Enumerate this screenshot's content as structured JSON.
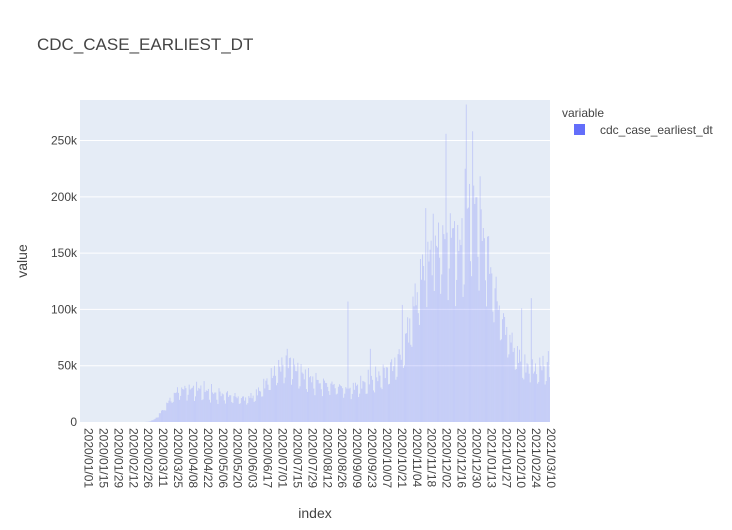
{
  "chart_data": {
    "type": "bar",
    "title": "CDC_CASE_EARLIEST_DT",
    "xlabel": "index",
    "ylabel": "value",
    "ylim": [
      0,
      286000
    ],
    "grid": true,
    "legend_position": "top-right",
    "legend_title": "variable",
    "series": [
      {
        "name": "cdc_case_earliest_dt",
        "color": "#636efa",
        "x_start": "2020/01/01",
        "x_end": "2021/03/16",
        "anchors": [
          [
            "2020/01/01",
            0
          ],
          [
            "2020/03/01",
            0
          ],
          [
            "2020/03/05",
            300
          ],
          [
            "2020/03/10",
            2000
          ],
          [
            "2020/03/15",
            7000
          ],
          [
            "2020/03/20",
            13000
          ],
          [
            "2020/03/25",
            20000
          ],
          [
            "2020/04/01",
            28000
          ],
          [
            "2020/04/08",
            30000
          ],
          [
            "2020/04/22",
            30000
          ],
          [
            "2020/05/06",
            26000
          ],
          [
            "2020/05/20",
            24000
          ],
          [
            "2020/06/03",
            21000
          ],
          [
            "2020/06/10",
            23000
          ],
          [
            "2020/06/17",
            28000
          ],
          [
            "2020/06/24",
            36000
          ],
          [
            "2020/07/01",
            44000
          ],
          [
            "2020/07/08",
            51000
          ],
          [
            "2020/07/15",
            54000
          ],
          [
            "2020/07/22",
            47000
          ],
          [
            "2020/07/29",
            42000
          ],
          [
            "2020/08/12",
            36000
          ],
          [
            "2020/08/26",
            33000
          ],
          [
            "2020/09/09",
            30000
          ],
          [
            "2020/09/23",
            35000
          ],
          [
            "2020/10/07",
            41000
          ],
          [
            "2020/10/21",
            51000
          ],
          [
            "2020/10/28",
            62000
          ],
          [
            "2020/11/04",
            82000
          ],
          [
            "2020/11/11",
            115000
          ],
          [
            "2020/11/18",
            140000
          ],
          [
            "2020/11/25",
            150000
          ],
          [
            "2020/12/02",
            160000
          ],
          [
            "2020/12/09",
            170000
          ],
          [
            "2020/12/16",
            168000
          ],
          [
            "2020/12/23",
            160000
          ],
          [
            "2020/12/30",
            195000
          ],
          [
            "2021/01/03",
            205000
          ],
          [
            "2021/01/06",
            200000
          ],
          [
            "2021/01/13",
            170000
          ],
          [
            "2021/01/20",
            138000
          ],
          [
            "2021/01/27",
            105000
          ],
          [
            "2021/02/03",
            85000
          ],
          [
            "2021/02/10",
            68000
          ],
          [
            "2021/02/17",
            55000
          ],
          [
            "2021/02/24",
            48000
          ],
          [
            "2021/03/03",
            46000
          ],
          [
            "2021/03/10",
            52000
          ],
          [
            "2021/03/16",
            45000
          ]
        ],
        "spikes": [
          [
            "2020/07/13",
            65000
          ],
          [
            "2020/09/08",
            107000
          ],
          [
            "2020/09/29",
            65000
          ],
          [
            "2020/10/29",
            104000
          ],
          [
            "2020/11/03",
            93000
          ],
          [
            "2020/11/20",
            190000
          ],
          [
            "2020/11/27",
            185000
          ],
          [
            "2020/12/09",
            256000
          ],
          [
            "2020/12/15",
            172000
          ],
          [
            "2020/12/20",
            175000
          ],
          [
            "2020/12/28",
            282000
          ],
          [
            "2021/01/04",
            210000
          ],
          [
            "2021/02/18",
            101000
          ],
          [
            "2021/02/27",
            110000
          ],
          [
            "2021/03/15",
            63000
          ]
        ]
      }
    ],
    "x_ticks": [
      "2020/01/01",
      "2020/01/15",
      "2020/01/29",
      "2020/02/12",
      "2020/02/26",
      "2020/03/11",
      "2020/03/25",
      "2020/04/08",
      "2020/04/22",
      "2020/05/06",
      "2020/05/20",
      "2020/06/03",
      "2020/06/17",
      "2020/07/01",
      "2020/07/15",
      "2020/07/29",
      "2020/08/12",
      "2020/08/26",
      "2020/09/09",
      "2020/09/23",
      "2020/10/07",
      "2020/10/21",
      "2020/11/04",
      "2020/11/18",
      "2020/12/02",
      "2020/12/16",
      "2020/12/30",
      "2021/01/13",
      "2021/01/27",
      "2021/02/10",
      "2021/02/24",
      "2021/03/10"
    ],
    "y_ticks": [
      {
        "value": 0,
        "label": "0"
      },
      {
        "value": 50000,
        "label": "50k"
      },
      {
        "value": 100000,
        "label": "100k"
      },
      {
        "value": 150000,
        "label": "150k"
      },
      {
        "value": 200000,
        "label": "200k"
      },
      {
        "value": 250000,
        "label": "250k"
      }
    ]
  }
}
